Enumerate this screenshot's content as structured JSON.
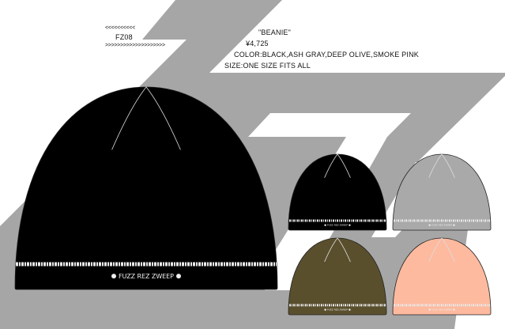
{
  "product": {
    "code_top_arrows": "<<<<<<<<<<",
    "code": "FZ08",
    "code_bottom_arrows": ">>>>>>>>>>>>>>>>>>>>",
    "name": "\"BEANIE\"",
    "price": "¥4,725",
    "colors": "COLOR:BLACK,ASH GRAY,DEEP OLIVE,SMOKE PINK",
    "size": "SIZE:ONE SIZE FITS ALL"
  },
  "logo_text": "FUZZ REZ ZWEEP",
  "background_gray": "#a6a6a6",
  "variants": [
    {
      "name": "BLACK",
      "color": "#000000"
    },
    {
      "name": "ASH GRAY",
      "color": "#a9a9a9"
    },
    {
      "name": "DEEP OLIVE",
      "color": "#5a4f2d"
    },
    {
      "name": "SMOKE PINK",
      "color": "#fdba9f"
    }
  ]
}
